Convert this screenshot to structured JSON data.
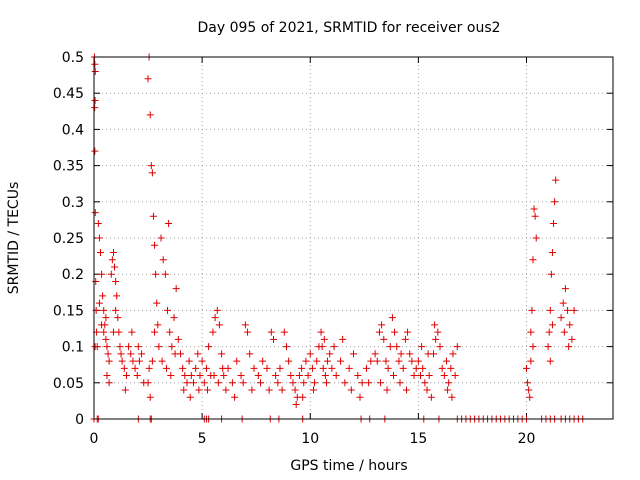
{
  "chart_data": {
    "type": "scatter",
    "title": "Day 095 of 2021, SRMTID for receiver ous2",
    "xlabel": "GPS time / hours",
    "ylabel": "SRMTID / TECUs",
    "xlim": [
      0,
      24
    ],
    "ylim": [
      0,
      0.5
    ],
    "xticks": [
      0,
      5,
      10,
      15,
      20
    ],
    "xtick_labels": [
      "0",
      "5",
      "10",
      "15",
      "20"
    ],
    "yticks": [
      0,
      0.05,
      0.1,
      0.15,
      0.2,
      0.25,
      0.3,
      0.35,
      0.4,
      0.45,
      0.5
    ],
    "ytick_labels": [
      "0",
      "0.05",
      "0.1",
      "0.15",
      "0.2",
      "0.25",
      "0.3",
      "0.35",
      "0.4",
      "0.45",
      "0.5"
    ],
    "grid": true,
    "marker": "+",
    "colors": {
      "series": "#e00000",
      "grid": "#a0a0a0",
      "axis": "#000000"
    },
    "series": [
      {
        "name": "SRMTID",
        "points": [
          [
            0.02,
            0.5
          ],
          [
            0.04,
            0.49
          ],
          [
            0.06,
            0.48
          ],
          [
            0.05,
            0.44
          ],
          [
            0.03,
            0.43
          ],
          [
            0.04,
            0.37
          ],
          [
            0.06,
            0.285
          ],
          [
            0.08,
            0.19
          ],
          [
            0.1,
            0.15
          ],
          [
            0.12,
            0.12
          ],
          [
            0.05,
            0.1
          ],
          [
            0.15,
            0.1
          ],
          [
            0.2,
            0.27
          ],
          [
            0.25,
            0.25
          ],
          [
            0.3,
            0.23
          ],
          [
            0.35,
            0.2
          ],
          [
            0.4,
            0.17
          ],
          [
            0.45,
            0.15
          ],
          [
            0.5,
            0.13
          ],
          [
            0.55,
            0.11
          ],
          [
            0.6,
            0.1
          ],
          [
            0.65,
            0.09
          ],
          [
            0.7,
            0.08
          ],
          [
            0.8,
            0.2
          ],
          [
            0.85,
            0.22
          ],
          [
            0.9,
            0.23
          ],
          [
            0.95,
            0.21
          ],
          [
            1.0,
            0.19
          ],
          [
            1.05,
            0.17
          ],
          [
            1.1,
            0.14
          ],
          [
            1.15,
            0.12
          ],
          [
            1.2,
            0.1
          ],
          [
            1.25,
            0.09
          ],
          [
            1.3,
            0.08
          ],
          [
            0.6,
            0.06
          ],
          [
            0.7,
            0.05
          ],
          [
            0.9,
            0.12
          ],
          [
            1.0,
            0.15
          ],
          [
            0.55,
            0.14
          ],
          [
            0.45,
            0.12
          ],
          [
            0.35,
            0.13
          ],
          [
            0.25,
            0.16
          ],
          [
            1.4,
            0.07
          ],
          [
            1.5,
            0.06
          ],
          [
            1.6,
            0.1
          ],
          [
            1.7,
            0.09
          ],
          [
            1.8,
            0.08
          ],
          [
            1.9,
            0.07
          ],
          [
            2.0,
            0.06
          ],
          [
            2.1,
            0.08
          ],
          [
            2.2,
            0.09
          ],
          [
            2.3,
            0.05
          ],
          [
            1.45,
            0.04
          ],
          [
            1.75,
            0.12
          ],
          [
            2.05,
            0.1
          ],
          [
            2.5,
            0.47
          ],
          [
            2.55,
            0.5
          ],
          [
            2.6,
            0.42
          ],
          [
            2.65,
            0.35
          ],
          [
            2.7,
            0.34
          ],
          [
            2.75,
            0.28
          ],
          [
            2.8,
            0.24
          ],
          [
            2.85,
            0.2
          ],
          [
            2.9,
            0.16
          ],
          [
            2.95,
            0.13
          ],
          [
            3.0,
            0.1
          ],
          [
            2.5,
            0.05
          ],
          [
            2.6,
            0.03
          ],
          [
            2.7,
            0.08
          ],
          [
            2.8,
            0.12
          ],
          [
            2.55,
            0.07
          ],
          [
            3.1,
            0.25
          ],
          [
            3.2,
            0.22
          ],
          [
            3.3,
            0.2
          ],
          [
            3.4,
            0.15
          ],
          [
            3.5,
            0.12
          ],
          [
            3.6,
            0.1
          ],
          [
            3.7,
            0.14
          ],
          [
            3.8,
            0.18
          ],
          [
            3.9,
            0.11
          ],
          [
            3.15,
            0.08
          ],
          [
            3.35,
            0.07
          ],
          [
            3.55,
            0.06
          ],
          [
            3.75,
            0.09
          ],
          [
            3.45,
            0.27
          ],
          [
            4.0,
            0.09
          ],
          [
            4.1,
            0.07
          ],
          [
            4.2,
            0.06
          ],
          [
            4.3,
            0.05
          ],
          [
            4.4,
            0.08
          ],
          [
            4.5,
            0.06
          ],
          [
            4.6,
            0.05
          ],
          [
            4.7,
            0.07
          ],
          [
            4.8,
            0.09
          ],
          [
            4.9,
            0.06
          ],
          [
            5.0,
            0.08
          ],
          [
            5.1,
            0.05
          ],
          [
            5.2,
            0.07
          ],
          [
            5.3,
            0.1
          ],
          [
            5.4,
            0.06
          ],
          [
            4.15,
            0.04
          ],
          [
            4.45,
            0.03
          ],
          [
            4.85,
            0.04
          ],
          [
            5.25,
            0.04
          ],
          [
            5.5,
            0.12
          ],
          [
            5.6,
            0.14
          ],
          [
            5.7,
            0.15
          ],
          [
            5.8,
            0.13
          ],
          [
            5.9,
            0.09
          ],
          [
            5.55,
            0.06
          ],
          [
            5.75,
            0.05
          ],
          [
            5.95,
            0.07
          ],
          [
            6.0,
            0.06
          ],
          [
            6.2,
            0.07
          ],
          [
            6.4,
            0.05
          ],
          [
            6.6,
            0.08
          ],
          [
            6.8,
            0.06
          ],
          [
            7.0,
            0.13
          ],
          [
            7.1,
            0.12
          ],
          [
            7.2,
            0.09
          ],
          [
            7.4,
            0.07
          ],
          [
            7.6,
            0.06
          ],
          [
            7.8,
            0.08
          ],
          [
            8.0,
            0.07
          ],
          [
            8.2,
            0.12
          ],
          [
            8.3,
            0.11
          ],
          [
            8.4,
            0.06
          ],
          [
            8.6,
            0.07
          ],
          [
            8.8,
            0.12
          ],
          [
            8.9,
            0.1
          ],
          [
            6.1,
            0.04
          ],
          [
            6.5,
            0.03
          ],
          [
            6.9,
            0.05
          ],
          [
            7.3,
            0.04
          ],
          [
            7.7,
            0.05
          ],
          [
            8.1,
            0.04
          ],
          [
            8.5,
            0.05
          ],
          [
            8.7,
            0.04
          ],
          [
            9.0,
            0.08
          ],
          [
            9.1,
            0.06
          ],
          [
            9.2,
            0.05
          ],
          [
            9.3,
            0.04
          ],
          [
            9.4,
            0.03
          ],
          [
            9.5,
            0.06
          ],
          [
            9.6,
            0.07
          ],
          [
            9.7,
            0.05
          ],
          [
            9.8,
            0.08
          ],
          [
            9.9,
            0.06
          ],
          [
            10.0,
            0.09
          ],
          [
            10.1,
            0.07
          ],
          [
            10.2,
            0.05
          ],
          [
            10.3,
            0.08
          ],
          [
            10.4,
            0.1
          ],
          [
            10.5,
            0.12
          ],
          [
            10.6,
            0.07
          ],
          [
            10.7,
            0.06
          ],
          [
            10.8,
            0.08
          ],
          [
            10.9,
            0.09
          ],
          [
            9.35,
            0.02
          ],
          [
            9.65,
            0.03
          ],
          [
            10.15,
            0.04
          ],
          [
            10.55,
            0.1
          ],
          [
            10.65,
            0.11
          ],
          [
            10.75,
            0.05
          ],
          [
            11.0,
            0.07
          ],
          [
            11.2,
            0.06
          ],
          [
            11.4,
            0.08
          ],
          [
            11.6,
            0.05
          ],
          [
            11.8,
            0.07
          ],
          [
            12.0,
            0.09
          ],
          [
            12.2,
            0.06
          ],
          [
            12.4,
            0.05
          ],
          [
            12.6,
            0.07
          ],
          [
            12.8,
            0.08
          ],
          [
            11.1,
            0.1
          ],
          [
            11.5,
            0.11
          ],
          [
            11.9,
            0.04
          ],
          [
            12.3,
            0.03
          ],
          [
            12.7,
            0.05
          ],
          [
            13.0,
            0.09
          ],
          [
            13.1,
            0.08
          ],
          [
            13.2,
            0.12
          ],
          [
            13.3,
            0.13
          ],
          [
            13.4,
            0.11
          ],
          [
            13.5,
            0.08
          ],
          [
            13.6,
            0.07
          ],
          [
            13.7,
            0.1
          ],
          [
            13.8,
            0.14
          ],
          [
            13.9,
            0.12
          ],
          [
            14.0,
            0.1
          ],
          [
            14.1,
            0.08
          ],
          [
            14.2,
            0.09
          ],
          [
            14.3,
            0.07
          ],
          [
            14.4,
            0.11
          ],
          [
            14.5,
            0.12
          ],
          [
            14.6,
            0.09
          ],
          [
            14.7,
            0.08
          ],
          [
            14.8,
            0.06
          ],
          [
            14.9,
            0.07
          ],
          [
            13.25,
            0.05
          ],
          [
            13.55,
            0.04
          ],
          [
            13.85,
            0.06
          ],
          [
            14.15,
            0.05
          ],
          [
            14.45,
            0.04
          ],
          [
            15.0,
            0.08
          ],
          [
            15.1,
            0.06
          ],
          [
            15.2,
            0.07
          ],
          [
            15.3,
            0.05
          ],
          [
            15.4,
            0.04
          ],
          [
            15.5,
            0.06
          ],
          [
            15.6,
            0.03
          ],
          [
            15.7,
            0.09
          ],
          [
            15.8,
            0.11
          ],
          [
            15.9,
            0.12
          ],
          [
            16.0,
            0.1
          ],
          [
            15.15,
            0.1
          ],
          [
            15.45,
            0.09
          ],
          [
            15.75,
            0.13
          ],
          [
            16.1,
            0.07
          ],
          [
            16.2,
            0.06
          ],
          [
            16.3,
            0.08
          ],
          [
            16.4,
            0.05
          ],
          [
            16.5,
            0.07
          ],
          [
            16.6,
            0.09
          ],
          [
            16.7,
            0.06
          ],
          [
            16.8,
            0.1
          ],
          [
            16.35,
            0.04
          ],
          [
            16.55,
            0.03
          ],
          [
            20.0,
            0.07
          ],
          [
            20.05,
            0.05
          ],
          [
            20.1,
            0.04
          ],
          [
            20.15,
            0.03
          ],
          [
            20.2,
            0.12
          ],
          [
            20.25,
            0.15
          ],
          [
            20.3,
            0.22
          ],
          [
            20.35,
            0.29
          ],
          [
            20.4,
            0.28
          ],
          [
            20.45,
            0.25
          ],
          [
            20.3,
            0.1
          ],
          [
            20.2,
            0.08
          ],
          [
            21.0,
            0.1
          ],
          [
            21.05,
            0.12
          ],
          [
            21.1,
            0.15
          ],
          [
            21.15,
            0.2
          ],
          [
            21.2,
            0.23
          ],
          [
            21.25,
            0.27
          ],
          [
            21.3,
            0.3
          ],
          [
            21.35,
            0.33
          ],
          [
            21.1,
            0.08
          ],
          [
            21.2,
            0.13
          ],
          [
            21.6,
            0.14
          ],
          [
            21.7,
            0.16
          ],
          [
            21.8,
            0.18
          ],
          [
            21.9,
            0.15
          ],
          [
            22.0,
            0.13
          ],
          [
            22.1,
            0.11
          ],
          [
            22.2,
            0.15
          ],
          [
            21.75,
            0.12
          ],
          [
            21.95,
            0.1
          ],
          [
            0.0,
            0
          ],
          [
            0.15,
            0
          ],
          [
            0.2,
            0
          ],
          [
            2.05,
            0
          ],
          [
            2.6,
            0
          ],
          [
            2.65,
            0
          ],
          [
            5.1,
            0
          ],
          [
            5.2,
            0
          ],
          [
            5.3,
            0
          ],
          [
            5.9,
            0
          ],
          [
            6.85,
            0
          ],
          [
            8.15,
            0
          ],
          [
            8.55,
            0
          ],
          [
            9.65,
            0
          ],
          [
            12.35,
            0
          ],
          [
            12.75,
            0
          ],
          [
            13.45,
            0
          ],
          [
            15.25,
            0
          ],
          [
            15.95,
            0
          ],
          [
            16.8,
            0
          ],
          [
            17.0,
            0
          ],
          [
            17.2,
            0
          ],
          [
            17.4,
            0
          ],
          [
            17.6,
            0
          ],
          [
            17.8,
            0
          ],
          [
            18.0,
            0
          ],
          [
            18.2,
            0
          ],
          [
            18.4,
            0
          ],
          [
            18.6,
            0
          ],
          [
            18.8,
            0
          ],
          [
            19.0,
            0
          ],
          [
            19.2,
            0
          ],
          [
            19.4,
            0
          ],
          [
            19.6,
            0
          ],
          [
            19.8,
            0
          ],
          [
            20.0,
            0
          ],
          [
            20.7,
            0
          ],
          [
            20.9,
            0
          ],
          [
            21.1,
            0
          ],
          [
            21.3,
            0
          ],
          [
            21.6,
            0
          ],
          [
            21.8,
            0
          ],
          [
            22.0,
            0
          ],
          [
            22.2,
            0
          ],
          [
            22.4,
            0
          ],
          [
            22.6,
            0
          ]
        ]
      }
    ]
  }
}
